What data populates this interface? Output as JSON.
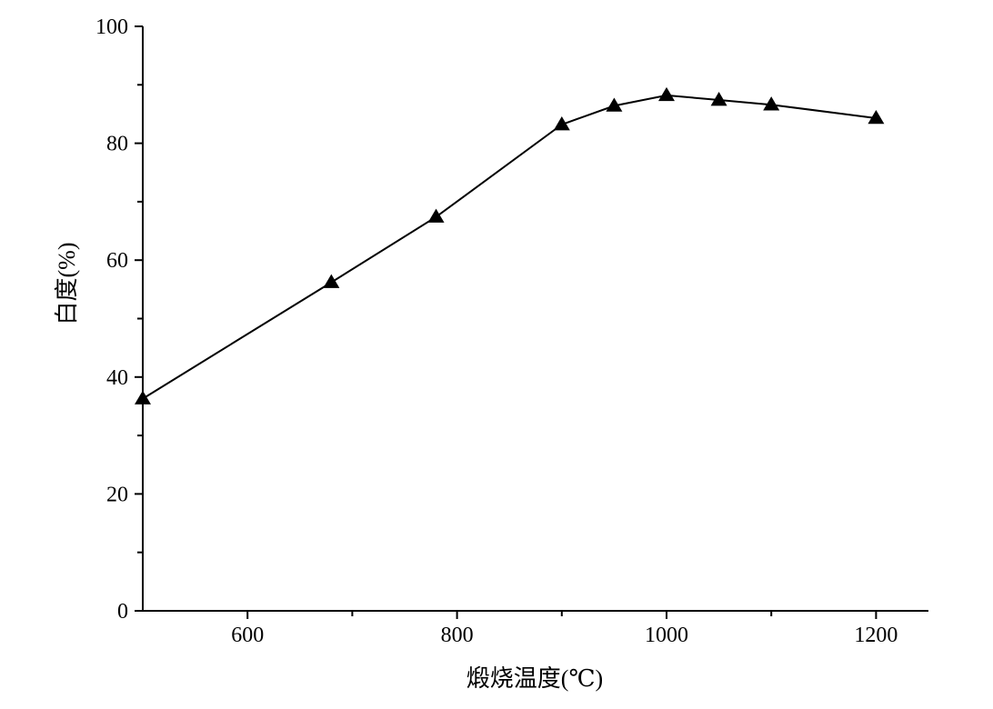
{
  "chart_data": {
    "type": "line",
    "title": "",
    "xlabel": "煅烧温度(℃)",
    "ylabel": "白度(%)",
    "xlim": [
      500,
      1250
    ],
    "ylim": [
      0,
      100
    ],
    "x_ticks": [
      600,
      800,
      1000,
      1200
    ],
    "x_tick_labels": [
      "600",
      "800",
      "1000",
      "1200"
    ],
    "y_ticks": [
      0,
      20,
      40,
      60,
      80,
      100
    ],
    "y_tick_labels": [
      "0",
      "20",
      "40",
      "60",
      "80",
      "100"
    ],
    "grid": false,
    "marker": "triangle",
    "line_color": "#000000",
    "series": [
      {
        "x": [
          500,
          680,
          780,
          900,
          950,
          1000,
          1050,
          1100,
          1200
        ],
        "y": [
          36.3,
          56.2,
          67.4,
          83.2,
          86.4,
          88.2,
          87.4,
          86.6,
          84.3
        ]
      }
    ]
  }
}
